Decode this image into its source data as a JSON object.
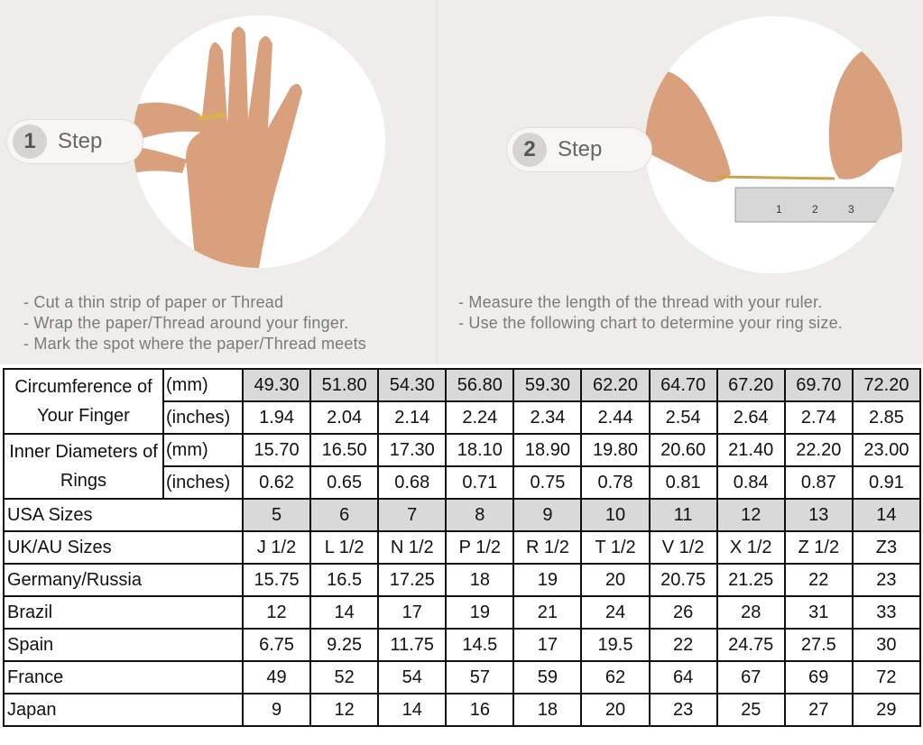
{
  "steps": [
    {
      "number": "1",
      "label": "Step",
      "instructions": [
        "- Cut a thin strip of paper or Thread",
        "- Wrap the paper/Thread around your finger.",
        "- Mark the spot where the paper/Thread meets"
      ]
    },
    {
      "number": "2",
      "label": "Step",
      "instructions": [
        "- Measure the length of the thread with your ruler.",
        "- Use the following chart to determine your ring size."
      ]
    }
  ],
  "ruler_marks": [
    "1",
    "2",
    "3"
  ],
  "colors": {
    "header_fill": "#d9d9d9",
    "background": "#efedea",
    "skin": "#d9a07e"
  },
  "table": {
    "circumference": {
      "label": "Circumference of Your Finger",
      "units": [
        "(mm)",
        "(inches)"
      ],
      "mm": [
        "49.30",
        "51.80",
        "54.30",
        "56.80",
        "59.30",
        "62.20",
        "64.70",
        "67.20",
        "69.70",
        "72.20"
      ],
      "inches": [
        "1.94",
        "2.04",
        "2.14",
        "2.24",
        "2.34",
        "2.44",
        "2.54",
        "2.64",
        "2.74",
        "2.85"
      ]
    },
    "inner_diameter": {
      "label": "Inner Diameters of Rings",
      "units": [
        "(mm)",
        "(inches)"
      ],
      "mm": [
        "15.70",
        "16.50",
        "17.30",
        "18.10",
        "18.90",
        "19.80",
        "20.60",
        "21.40",
        "22.20",
        "23.00"
      ],
      "inches": [
        "0.62",
        "0.65",
        "0.68",
        "0.71",
        "0.75",
        "0.78",
        "0.81",
        "0.84",
        "0.87",
        "0.91"
      ]
    },
    "rows": [
      {
        "label": "USA Sizes",
        "values": [
          "5",
          "6",
          "7",
          "8",
          "9",
          "10",
          "11",
          "12",
          "13",
          "14"
        ],
        "highlight": true
      },
      {
        "label": "UK/AU Sizes",
        "values": [
          "J 1/2",
          "L 1/2",
          "N 1/2",
          "P 1/2",
          "R 1/2",
          "T 1/2",
          "V 1/2",
          "X 1/2",
          "Z 1/2",
          "Z3"
        ]
      },
      {
        "label": "Germany/Russia",
        "values": [
          "15.75",
          "16.5",
          "17.25",
          "18",
          "19",
          "20",
          "20.75",
          "21.25",
          "22",
          "23"
        ]
      },
      {
        "label": "Brazil",
        "values": [
          "12",
          "14",
          "17",
          "19",
          "21",
          "24",
          "26",
          "28",
          "31",
          "33"
        ]
      },
      {
        "label": "Spain",
        "values": [
          "6.75",
          "9.25",
          "11.75",
          "14.5",
          "17",
          "19.5",
          "22",
          "24.75",
          "27.5",
          "30"
        ]
      },
      {
        "label": "France",
        "values": [
          "49",
          "52",
          "54",
          "57",
          "59",
          "62",
          "64",
          "67",
          "69",
          "72"
        ]
      },
      {
        "label": "Japan",
        "values": [
          "9",
          "12",
          "14",
          "16",
          "18",
          "20",
          "23",
          "25",
          "27",
          "29"
        ]
      }
    ]
  }
}
